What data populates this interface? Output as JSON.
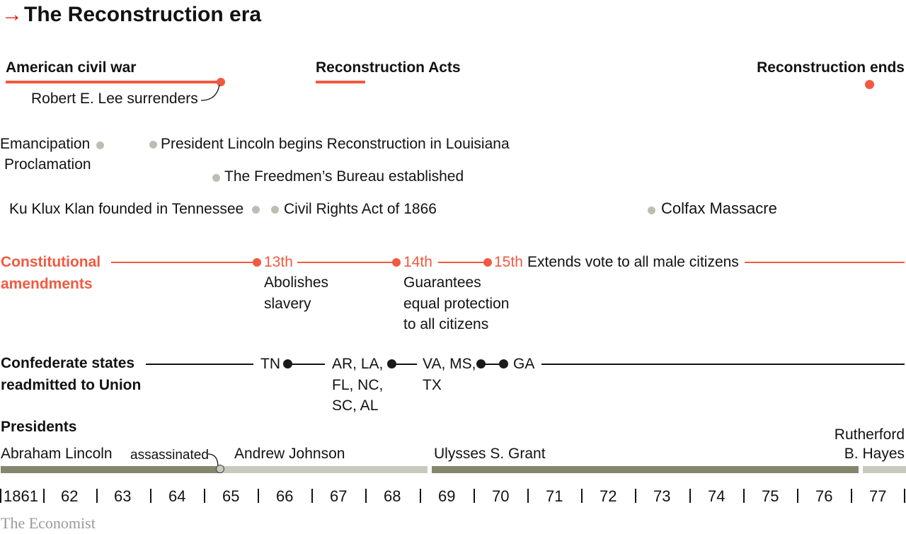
{
  "header": {
    "arrow": "→",
    "title": "The Reconstruction era"
  },
  "war": {
    "label": "American civil war",
    "lee": "Robert E. Lee surrenders"
  },
  "acts": {
    "label": "Reconstruction Acts"
  },
  "ends": {
    "label": "Reconstruction ends"
  },
  "events": {
    "emancipation_1": "Emancipation",
    "emancipation_2": "Proclamation",
    "lincoln_louisiana": "President Lincoln begins Reconstruction in Louisiana",
    "freedmen": "The Freedmen’s Bureau established",
    "kkk": "Ku Klux Klan founded in Tennessee",
    "civil_rights": "Civil Rights Act of 1866",
    "colfax": "Colfax Massacre"
  },
  "amendments": {
    "label_1": "Constitutional",
    "label_2": "amendments",
    "a13": {
      "num": "13th",
      "desc_1": "Abolishes",
      "desc_2": "slavery"
    },
    "a14": {
      "num": "14th",
      "desc_1": "Guarantees",
      "desc_2": "equal protection",
      "desc_3": "to all citizens"
    },
    "a15": {
      "num": "15th",
      "desc": "Extends vote to all male citizens"
    }
  },
  "readmitted": {
    "label_1": "Confederate states",
    "label_2": "readmitted to Union",
    "tn": "TN",
    "g2_1": "AR, LA,",
    "g2_2": "FL, NC,",
    "g2_3": "SC, AL",
    "g3_1": "VA, MS,",
    "g3_2": "TX",
    "ga": "GA"
  },
  "presidents": {
    "label": "Presidents",
    "lincoln": "Abraham Lincoln",
    "assassinated": "assassinated",
    "johnson": "Andrew Johnson",
    "grant": "Ulysses S. Grant",
    "hayes_1": "Rutherford",
    "hayes_2": "B. Hayes"
  },
  "years": [
    "1861",
    "62",
    "63",
    "64",
    "65",
    "66",
    "67",
    "68",
    "69",
    "70",
    "71",
    "72",
    "73",
    "74",
    "75",
    "76",
    "77"
  ],
  "footer": {
    "source": "The Economist"
  },
  "colors": {
    "brand_red": "#e3120b",
    "accent_orange": "#f15a40",
    "dark_bar": "#86866f",
    "light_bar": "#c9c9be",
    "event_dot": "#bdbdb3"
  }
}
